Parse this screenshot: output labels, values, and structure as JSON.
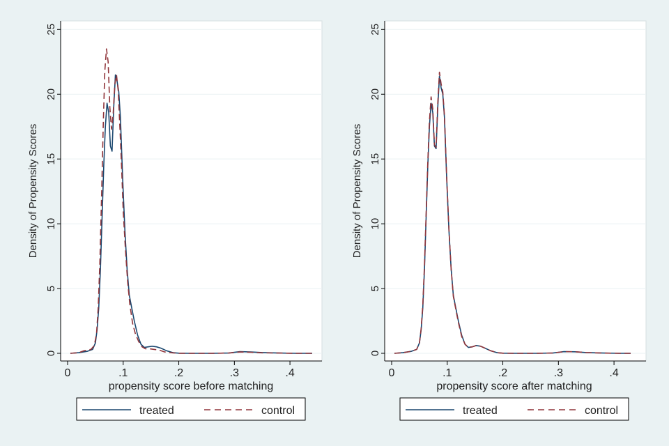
{
  "colors": {
    "treated": "#1a476f",
    "control": "#90353b",
    "grid": "#eaf2f3",
    "plot_bg": "#ffffff",
    "page_bg": "#eaf2f3"
  },
  "chart_data": [
    {
      "type": "line",
      "ylabel": "Density of Propensity Scores",
      "xlabel": "propensity score before matching",
      "xlim": [
        0,
        0.44
      ],
      "ylim": [
        0,
        25.5
      ],
      "x_ticks": [
        0,
        0.1,
        0.2,
        0.3,
        0.4
      ],
      "x_tick_labels": [
        "0",
        ".1",
        ".2",
        ".3",
        ".4"
      ],
      "y_ticks": [
        0,
        5,
        10,
        15,
        20,
        25
      ],
      "y_tick_labels": [
        "0",
        "5",
        "10",
        "15",
        "20",
        "25"
      ],
      "legend": {
        "placement": "bottom",
        "entries": [
          "treated",
          "control"
        ]
      },
      "series": [
        {
          "name": "treated",
          "style": "solid",
          "x": [
            0.005,
            0.02,
            0.035,
            0.045,
            0.05,
            0.053,
            0.056,
            0.059,
            0.062,
            0.065,
            0.068,
            0.071,
            0.074,
            0.077,
            0.08,
            0.083,
            0.086,
            0.089,
            0.092,
            0.095,
            0.099,
            0.103,
            0.107,
            0.111,
            0.115,
            0.12,
            0.126,
            0.132,
            0.138,
            0.145,
            0.152,
            0.16,
            0.168,
            0.178,
            0.19,
            0.2,
            0.22,
            0.26,
            0.29,
            0.31,
            0.33,
            0.35,
            0.38,
            0.41,
            0.44
          ],
          "y": [
            0,
            0.05,
            0.15,
            0.3,
            0.8,
            1.8,
            3.5,
            6.5,
            10.5,
            14.5,
            17.5,
            19.3,
            18.6,
            16,
            15.6,
            19,
            21.5,
            21,
            20.2,
            18.2,
            13.5,
            9.5,
            6.5,
            4.5,
            3.6,
            2.5,
            1.4,
            0.7,
            0.45,
            0.5,
            0.55,
            0.5,
            0.4,
            0.2,
            0.05,
            0.01,
            0,
            0,
            0.02,
            0.13,
            0.1,
            0.06,
            0.02,
            0,
            0
          ]
        },
        {
          "name": "control",
          "style": "dashed",
          "x": [
            0.005,
            0.02,
            0.028,
            0.035,
            0.042,
            0.048,
            0.052,
            0.055,
            0.058,
            0.061,
            0.064,
            0.067,
            0.07,
            0.073,
            0.076,
            0.079,
            0.082,
            0.085,
            0.088,
            0.091,
            0.094,
            0.097,
            0.1,
            0.104,
            0.108,
            0.112,
            0.117,
            0.122,
            0.128,
            0.134,
            0.14,
            0.148,
            0.156,
            0.165,
            0.175,
            0.19,
            0.2,
            0.22,
            0.26,
            0.29,
            0.31,
            0.33,
            0.35,
            0.38,
            0.41,
            0.44
          ],
          "y": [
            0,
            0.05,
            0.18,
            0.25,
            0.3,
            0.6,
            1.5,
            3.5,
            7,
            12,
            17.5,
            21.8,
            23.5,
            22.5,
            19,
            17.3,
            18.5,
            20.8,
            21.5,
            20.3,
            17.5,
            14.5,
            11,
            8,
            5.5,
            3.8,
            2.3,
            1.5,
            0.9,
            0.5,
            0.35,
            0.35,
            0.3,
            0.25,
            0.1,
            0.03,
            0,
            0,
            0,
            0.02,
            0.1,
            0.08,
            0.04,
            0.02,
            0,
            0
          ]
        }
      ]
    },
    {
      "type": "line",
      "ylabel": "Density of Propensity Scores",
      "xlabel": "propensity score after matching",
      "xlim": [
        0,
        0.44
      ],
      "ylim": [
        0,
        25.5
      ],
      "x_ticks": [
        0,
        0.1,
        0.2,
        0.3,
        0.4
      ],
      "x_tick_labels": [
        "0",
        ".1",
        ".2",
        ".3",
        ".4"
      ],
      "y_ticks": [
        0,
        5,
        10,
        15,
        20,
        25
      ],
      "y_tick_labels": [
        "0",
        "5",
        "10",
        "15",
        "20",
        "25"
      ],
      "legend": {
        "placement": "bottom",
        "entries": [
          "treated",
          "control"
        ]
      },
      "series": [
        {
          "name": "treated",
          "style": "solid",
          "x": [
            0.005,
            0.02,
            0.035,
            0.045,
            0.05,
            0.053,
            0.056,
            0.059,
            0.062,
            0.065,
            0.068,
            0.071,
            0.074,
            0.077,
            0.08,
            0.083,
            0.086,
            0.089,
            0.092,
            0.095,
            0.099,
            0.103,
            0.107,
            0.111,
            0.115,
            0.12,
            0.126,
            0.132,
            0.138,
            0.145,
            0.152,
            0.16,
            0.168,
            0.178,
            0.19,
            0.2,
            0.22,
            0.26,
            0.29,
            0.31,
            0.33,
            0.35,
            0.38,
            0.41,
            0.43
          ],
          "y": [
            0,
            0.05,
            0.15,
            0.3,
            0.8,
            1.8,
            3.5,
            6.5,
            10.5,
            14.5,
            17.5,
            19.3,
            18.6,
            16,
            15.8,
            19,
            21.4,
            20.5,
            20,
            18.2,
            13.5,
            9.5,
            6.5,
            4.5,
            3.6,
            2.5,
            1.4,
            0.7,
            0.45,
            0.5,
            0.6,
            0.55,
            0.4,
            0.2,
            0.05,
            0.01,
            0,
            0,
            0.02,
            0.13,
            0.12,
            0.06,
            0.02,
            0,
            0
          ]
        },
        {
          "name": "control",
          "style": "dashed",
          "x": [
            0.005,
            0.02,
            0.035,
            0.045,
            0.05,
            0.053,
            0.056,
            0.059,
            0.062,
            0.065,
            0.068,
            0.071,
            0.074,
            0.077,
            0.08,
            0.083,
            0.086,
            0.089,
            0.092,
            0.095,
            0.099,
            0.103,
            0.107,
            0.111,
            0.115,
            0.12,
            0.126,
            0.132,
            0.138,
            0.145,
            0.152,
            0.16,
            0.168,
            0.178,
            0.19,
            0.2,
            0.22,
            0.26,
            0.29,
            0.31,
            0.33,
            0.35,
            0.38,
            0.41,
            0.43
          ],
          "y": [
            0,
            0.05,
            0.15,
            0.3,
            0.8,
            1.9,
            3.7,
            6.8,
            10.8,
            14.8,
            17.9,
            19.8,
            18.9,
            16.1,
            15.9,
            19.3,
            21.7,
            20.8,
            20.2,
            18.3,
            13.6,
            9.6,
            6.5,
            4.4,
            3.5,
            2.4,
            1.3,
            0.7,
            0.45,
            0.5,
            0.6,
            0.55,
            0.4,
            0.2,
            0.05,
            0.01,
            0,
            0,
            0.02,
            0.13,
            0.12,
            0.06,
            0.02,
            0,
            0
          ]
        }
      ]
    }
  ]
}
